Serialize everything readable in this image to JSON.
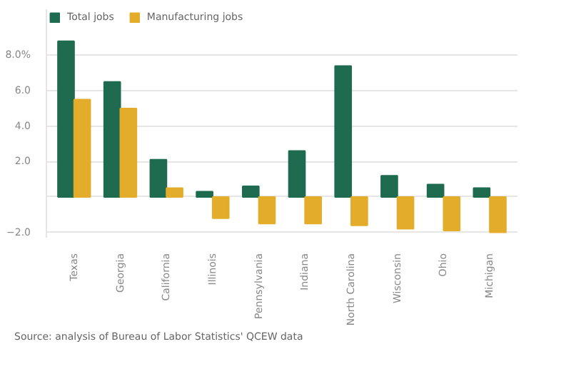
{
  "chart_data": {
    "type": "bar",
    "categories": [
      "Texas",
      "Georgia",
      "California",
      "Illinois",
      "Pennsylvania",
      "Indiana",
      "North Carolina",
      "Wisconsin",
      "Ohio",
      "Michigan"
    ],
    "series": [
      {
        "name": "Total jobs",
        "color": "#1e6b4f",
        "values": [
          8.8,
          6.5,
          2.1,
          0.3,
          0.6,
          2.6,
          7.4,
          1.2,
          0.7,
          0.5
        ]
      },
      {
        "name": "Manufacturing jobs",
        "color": "#e3ac2a",
        "values": [
          5.5,
          5.0,
          0.5,
          -1.2,
          -1.5,
          -1.5,
          -1.6,
          -1.8,
          -1.9,
          -2.0
        ]
      }
    ],
    "ylim": [
      -2.3,
      10.6
    ],
    "yticks": [
      {
        "value": -2,
        "label": "−2.0"
      },
      {
        "value": 0,
        "label": null
      },
      {
        "value": 2,
        "label": "2.0"
      },
      {
        "value": 4,
        "label": "4.0"
      },
      {
        "value": 6,
        "label": "6.0"
      },
      {
        "value": 8,
        "label": "8.0%"
      }
    ],
    "grid": "y",
    "legend": "top left",
    "annotations": [
      "Source: analysis of Bureau of Labor Statistics' QCEW data"
    ]
  }
}
